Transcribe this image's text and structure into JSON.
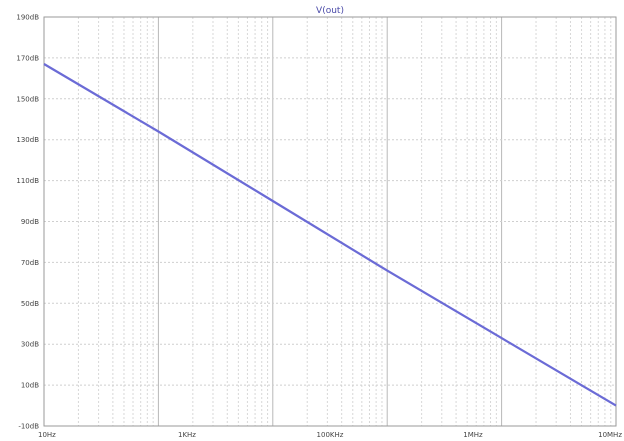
{
  "chart_data": {
    "type": "line",
    "title": "V(out)",
    "xlabel": "",
    "ylabel": "",
    "x_scale": "log",
    "xlim": [
      10,
      1000000
    ],
    "ylim": [
      -10,
      190
    ],
    "x_ticks": [
      "10Hz",
      "1KHz",
      "100KHz",
      "1MHz",
      "10MHz"
    ],
    "y_ticks": [
      "190dB",
      "170dB",
      "150dB",
      "130dB",
      "110dB",
      "90dB",
      "70dB",
      "50dB",
      "30dB",
      "10dB",
      "-10dB"
    ],
    "grid": true,
    "series": [
      {
        "name": "V(out)",
        "color": "#6b6bd6",
        "x": [
          10,
          100,
          1000,
          10000,
          100000,
          1000000
        ],
        "y": [
          167,
          134,
          100,
          66,
          33,
          0
        ]
      }
    ]
  }
}
